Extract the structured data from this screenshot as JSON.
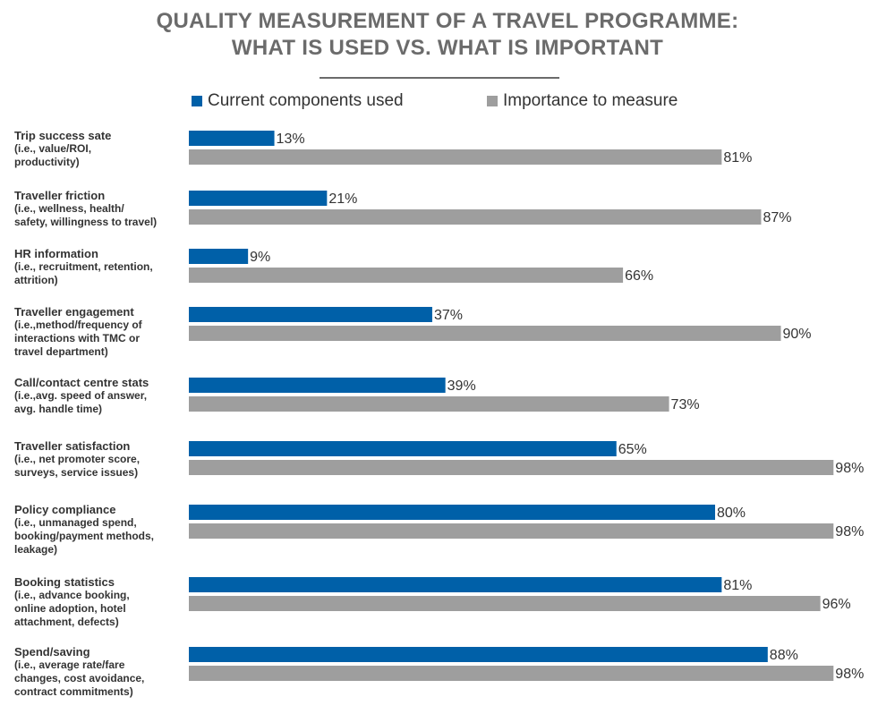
{
  "title_lines": [
    "QUALITY MEASUREMENT OF A TRAVEL PROGRAMME:",
    "WHAT IS USED VS. WHAT IS IMPORTANT"
  ],
  "legend": {
    "used": "Current components used",
    "importance": "Importance to measure"
  },
  "colors": {
    "used": "#0060a8",
    "importance": "#9e9e9e"
  },
  "chart_data": {
    "type": "bar",
    "orientation": "horizontal",
    "title": "QUALITY MEASUREMENT OF A TRAVEL PROGRAMME: WHAT IS USED VS. WHAT IS IMPORTANT",
    "categories": [
      {
        "name": "Trip success sate",
        "detail": [
          "(i.e., value/ROI,",
          "productivity)"
        ]
      },
      {
        "name": "Traveller friction",
        "detail": [
          "(i.e., wellness, health/",
          "safety, willingness to travel)"
        ]
      },
      {
        "name": "HR information",
        "detail": [
          "(i.e., recruitment, retention,",
          "attrition)"
        ]
      },
      {
        "name": "Traveller engagement",
        "detail": [
          "(i.e.,method/frequency of",
          "interactions with TMC or",
          "travel department)"
        ]
      },
      {
        "name": "Call/contact centre stats",
        "detail": [
          "(i.e.,avg. speed of answer,",
          "avg. handle time)"
        ]
      },
      {
        "name": "Traveller satisfaction",
        "detail": [
          "(i.e., net promoter score,",
          "surveys, service issues)"
        ]
      },
      {
        "name": "Policy compliance",
        "detail": [
          "(i.e., unmanaged spend,",
          "booking/payment methods,",
          "leakage)"
        ]
      },
      {
        "name": "Booking statistics",
        "detail": [
          "(i.e., advance booking,",
          "online adoption, hotel",
          "attachment, defects)"
        ]
      },
      {
        "name": "Spend/saving",
        "detail": [
          "(i.e., average rate/fare",
          "changes, cost avoidance,",
          "contract commitments)"
        ]
      }
    ],
    "series": [
      {
        "name": "Current components used",
        "values": [
          13,
          21,
          9,
          37,
          39,
          65,
          80,
          81,
          88
        ]
      },
      {
        "name": "Importance to measure",
        "values": [
          81,
          87,
          66,
          90,
          73,
          98,
          98,
          96,
          98
        ]
      }
    ],
    "value_unit": "%",
    "xlim": [
      0,
      100
    ],
    "grid": false,
    "legend_position": "top"
  }
}
